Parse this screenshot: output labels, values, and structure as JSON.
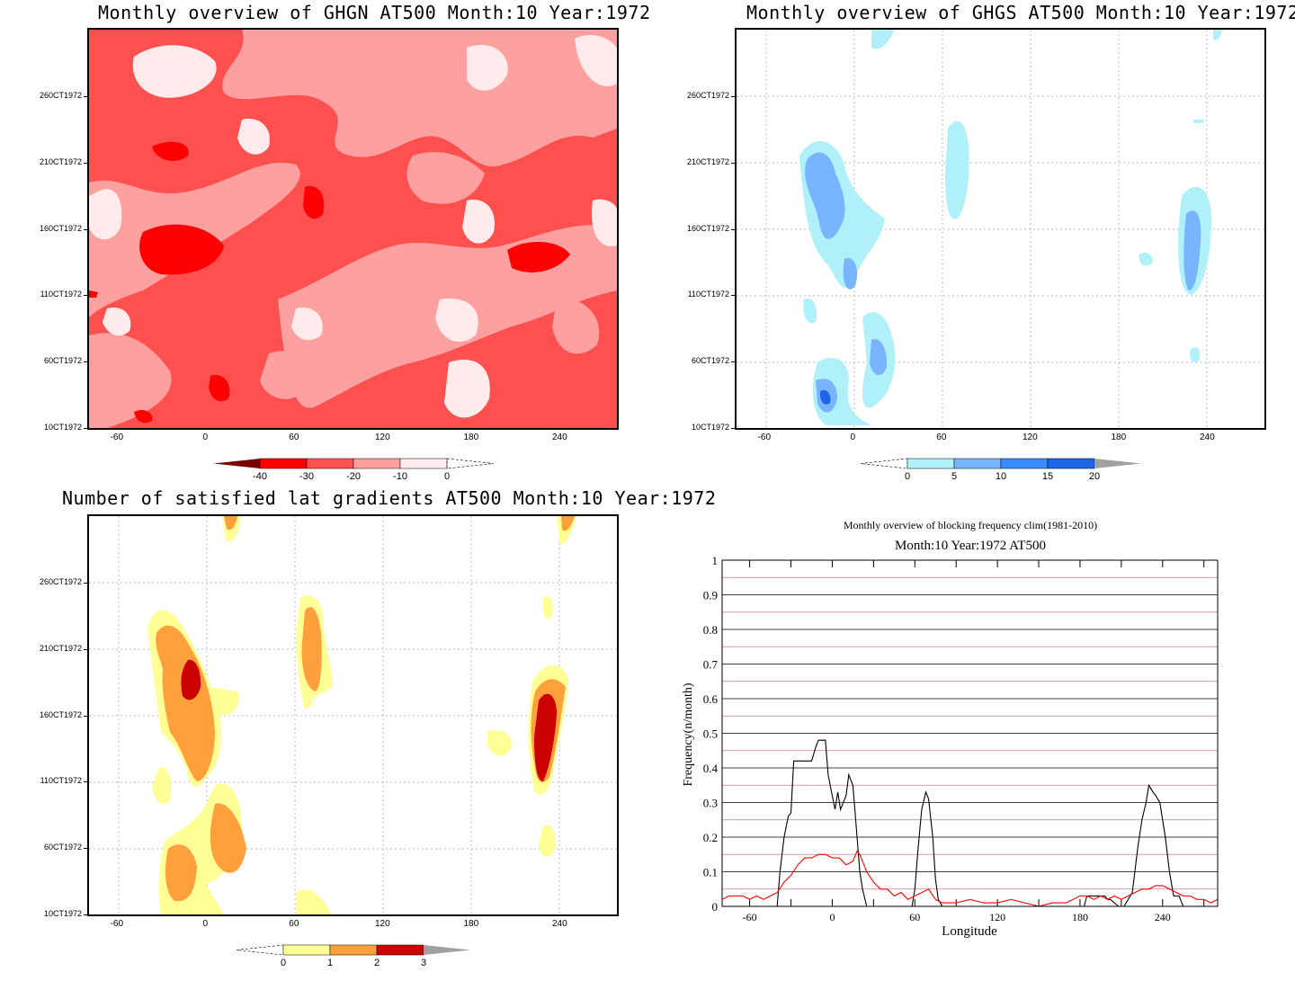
{
  "panels": [
    {
      "id": "ghgn",
      "title": "Monthly overview of GHGN AT500 Month:10 Year:1972",
      "y_ticks": [
        "260CT1972",
        "210CT1972",
        "160CT1972",
        "110CT1972",
        "60CT1972",
        "10CT1972"
      ],
      "x_ticks": [
        "-60",
        "0",
        "60",
        "120",
        "180",
        "240"
      ],
      "colorbar": {
        "labels": [
          "-40",
          "-30",
          "-20",
          "-10",
          "0"
        ],
        "colors": [
          "#7a0000",
          "#ff0000",
          "#ff5050",
          "#ffa0a0",
          "#ffebeb"
        ],
        "extend": "left"
      }
    },
    {
      "id": "ghgs",
      "title": "Monthly overview of GHGS AT500 Month:10 Year:1972",
      "y_ticks": [
        "260CT1972",
        "210CT1972",
        "160CT1972",
        "110CT1972",
        "60CT1972",
        "10CT1972"
      ],
      "x_ticks": [
        "-60",
        "0",
        "60",
        "120",
        "180",
        "240"
      ],
      "colorbar": {
        "labels": [
          "0",
          "5",
          "10",
          "15",
          "20"
        ],
        "colors": [
          "#b0f0f8",
          "#78b4ff",
          "#3c8cff",
          "#1e64e6",
          "#a0a0a0"
        ],
        "extend": "right"
      }
    },
    {
      "id": "grad",
      "title": "Number of satisfied lat gradients AT500 Month:10 Year:1972",
      "y_ticks": [
        "260CT1972",
        "210CT1972",
        "160CT1972",
        "110CT1972",
        "60CT1972",
        "10CT1972"
      ],
      "x_ticks": [
        "-60",
        "0",
        "60",
        "120",
        "180",
        "240"
      ],
      "colorbar": {
        "labels": [
          "0",
          "1",
          "2",
          "3"
        ],
        "colors": [
          "#ffff96",
          "#ffa03c",
          "#cd0000",
          "#a0a0a0"
        ],
        "extend": "right"
      }
    }
  ],
  "freq": {
    "title": "Monthly overview of blocking frequency clim(1981-2010)",
    "subtitle": "Month:10 Year:1972  AT500",
    "xlabel": "Longitude",
    "ylabel": "Frequency(n/month)",
    "y_ticks": [
      "0",
      "0.1",
      "0.2",
      "0.3",
      "0.4",
      "0.5",
      "0.6",
      "0.7",
      "0.8",
      "0.9",
      "1"
    ],
    "x_ticks": [
      "-60",
      "0",
      "60",
      "120",
      "180",
      "240"
    ]
  },
  "chart_data": [
    {
      "type": "heatmap",
      "title": "Monthly overview of GHGN AT500 Month:10 Year:1972",
      "x_range": [
        -80,
        280
      ],
      "y_range": [
        "1OCT1972",
        "31OCT1972"
      ],
      "levels": [
        -40,
        -30,
        -20,
        -10,
        0
      ]
    },
    {
      "type": "heatmap",
      "title": "Monthly overview of GHGS AT500 Month:10 Year:1972",
      "x_range": [
        -80,
        280
      ],
      "y_range": [
        "1OCT1972",
        "31OCT1972"
      ],
      "levels": [
        0,
        5,
        10,
        15,
        20
      ]
    },
    {
      "type": "heatmap",
      "title": "Number of satisfied lat gradients AT500 Month:10 Year:1972",
      "x_range": [
        -80,
        280
      ],
      "y_range": [
        "1OCT1972",
        "31OCT1972"
      ],
      "levels": [
        0,
        1,
        2,
        3
      ]
    },
    {
      "type": "line",
      "title": "Monthly overview of blocking frequency clim(1981-2010)",
      "subtitle": "Month:10 Year:1972  AT500",
      "xlabel": "Longitude",
      "ylabel": "Frequency(n/month)",
      "xlim": [
        -80,
        280
      ],
      "ylim": [
        0,
        1
      ],
      "grid": true,
      "series": [
        {
          "color": "#000000",
          "x": [
            -80,
            -40,
            -38,
            -35,
            -32,
            -30,
            -28,
            -25,
            -20,
            -15,
            -12,
            -10,
            -5,
            -3,
            0,
            2,
            4,
            6,
            10,
            12,
            15,
            17,
            20,
            22,
            25,
            58,
            60,
            62,
            65,
            68,
            70,
            73,
            75,
            77,
            80,
            183,
            185,
            195,
            198,
            200,
            202,
            208,
            212,
            215,
            218,
            222,
            225,
            228,
            230,
            233,
            235,
            238,
            242,
            245,
            248,
            252,
            255,
            280
          ],
          "y": [
            0,
            0,
            0.1,
            0.2,
            0.26,
            0.27,
            0.42,
            0.42,
            0.42,
            0.42,
            0.46,
            0.48,
            0.48,
            0.38,
            0.32,
            0.28,
            0.33,
            0.28,
            0.32,
            0.38,
            0.35,
            0.25,
            0.1,
            0.05,
            0,
            0,
            0.05,
            0.15,
            0.28,
            0.33,
            0.31,
            0.2,
            0.08,
            0.02,
            0,
            0,
            0.03,
            0.03,
            0.03,
            0.02,
            0.02,
            0,
            0,
            0.02,
            0.04,
            0.17,
            0.25,
            0.3,
            0.35,
            0.33,
            0.32,
            0.3,
            0.2,
            0.1,
            0.03,
            0.03,
            0,
            0
          ]
        },
        {
          "color": "#ff0000",
          "x": [
            -80,
            -75,
            -65,
            -60,
            -55,
            -50,
            -45,
            -40,
            -35,
            -30,
            -25,
            -20,
            -15,
            -10,
            -5,
            0,
            5,
            10,
            15,
            18,
            20,
            25,
            30,
            35,
            40,
            45,
            50,
            55,
            60,
            65,
            70,
            75,
            80,
            90,
            100,
            110,
            120,
            130,
            140,
            150,
            160,
            170,
            175,
            180,
            185,
            190,
            195,
            200,
            205,
            210,
            215,
            220,
            225,
            230,
            235,
            240,
            245,
            250,
            255,
            260,
            265,
            270,
            275,
            280
          ],
          "y": [
            0.02,
            0.03,
            0.03,
            0.02,
            0.03,
            0.02,
            0.03,
            0.04,
            0.07,
            0.09,
            0.12,
            0.14,
            0.14,
            0.15,
            0.15,
            0.14,
            0.14,
            0.12,
            0.13,
            0.16,
            0.15,
            0.1,
            0.07,
            0.05,
            0.05,
            0.03,
            0.04,
            0.02,
            0.03,
            0.04,
            0.05,
            0.02,
            0.01,
            0.01,
            0.02,
            0.01,
            0.01,
            0.02,
            0.01,
            0,
            0.01,
            0.01,
            0.02,
            0.03,
            0.03,
            0.02,
            0.03,
            0.02,
            0.03,
            0.02,
            0.03,
            0.04,
            0.05,
            0.05,
            0.06,
            0.06,
            0.05,
            0.04,
            0.03,
            0.03,
            0.02,
            0.02,
            0.01,
            0.02
          ]
        }
      ]
    }
  ]
}
